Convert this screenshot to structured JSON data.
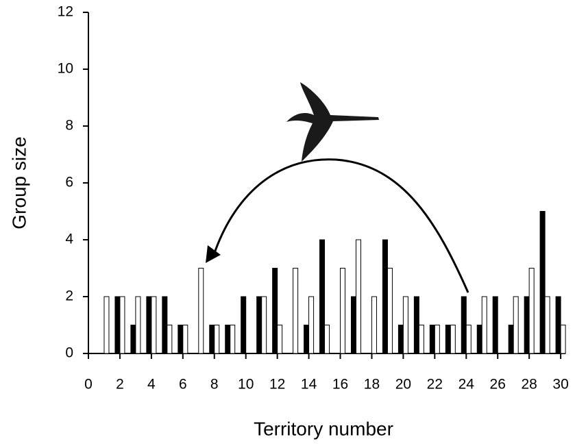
{
  "chart_data": {
    "type": "bar",
    "x": [
      1,
      2,
      3,
      4,
      5,
      6,
      7,
      8,
      9,
      10,
      11,
      12,
      13,
      14,
      15,
      16,
      17,
      18,
      19,
      20,
      21,
      22,
      23,
      24,
      25,
      26,
      27,
      28,
      29,
      30
    ],
    "series": [
      {
        "color": "#000000",
        "values": [
          null,
          2,
          1,
          2,
          2,
          1,
          null,
          1,
          1,
          2,
          2,
          3,
          null,
          1,
          4,
          null,
          2,
          null,
          4,
          1,
          2,
          1,
          1,
          2,
          1,
          2,
          1,
          2,
          5,
          2
        ]
      },
      {
        "color": "#ffffff",
        "values": [
          2,
          2,
          2,
          2,
          1,
          1,
          3,
          1,
          1,
          null,
          2,
          1,
          3,
          2,
          1,
          3,
          4,
          2,
          3,
          2,
          1,
          1,
          1,
          1,
          2,
          null,
          2,
          3,
          2,
          1
        ]
      }
    ],
    "xlabel": "Territory number",
    "ylabel": "Group size",
    "xlim": [
      0,
      30.3
    ],
    "xticks": [
      0,
      2,
      4,
      6,
      8,
      10,
      12,
      14,
      16,
      18,
      20,
      22,
      24,
      26,
      28,
      30
    ],
    "ylim": [
      0,
      12
    ],
    "yticks": [
      0,
      2,
      4,
      6,
      8,
      10,
      12
    ]
  }
}
